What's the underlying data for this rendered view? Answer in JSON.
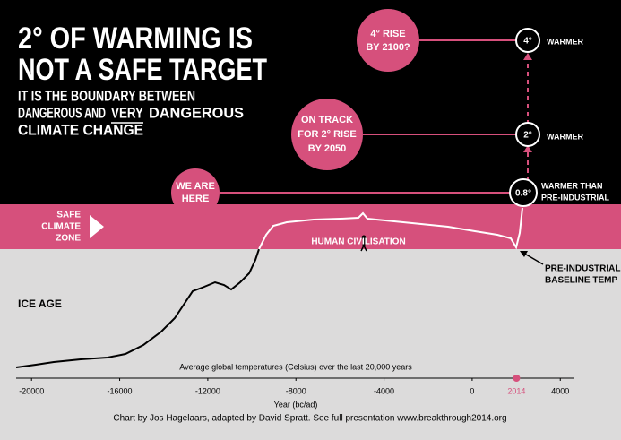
{
  "chart_data": {
    "type": "infographic",
    "title": [
      "2° OF WARMING IS",
      "NOT A SAFE TARGET"
    ],
    "subtitle": [
      "IT IS THE BOUNDARY BETWEEN",
      "DANGEROUS AND",
      "VERY",
      "DANGEROUS",
      "CLIMATE CHANGE"
    ],
    "bubbles": [
      {
        "lines": [
          "4° RISE",
          "BY 2100?"
        ],
        "marker": "4°",
        "label": [
          "WARMER"
        ]
      },
      {
        "lines": [
          "ON TRACK",
          "FOR 2° RISE",
          "BY 2050"
        ],
        "marker": "2°",
        "label": [
          "WARMER"
        ]
      },
      {
        "lines": [
          "WE ARE",
          "HERE"
        ],
        "marker": "0.8°",
        "label": [
          "WARMER THAN",
          "PRE-INDUSTRIAL"
        ]
      }
    ],
    "safe_zone": [
      "SAFE",
      "CLIMATE",
      "ZONE"
    ],
    "annotations": {
      "civilisation": "HUMAN CIVILISATION",
      "baseline": [
        "PRE-INDUSTRIAL",
        "BASELINE TEMP"
      ],
      "ice_age": "ICE AGE"
    },
    "axis_caption": "Average global temperatures (Celsius) over the last 20,000 years",
    "xlabel": "Year (bc/ad)",
    "xlim": [
      -20700,
      4600
    ],
    "xticks": [
      -20000,
      -16000,
      -12000,
      -8000,
      -4000,
      0,
      2014,
      4000
    ],
    "highlight": 2014,
    "highlight_color": "#d6507c",
    "credit": "Chart by Jos Hagelaars, adapted by David Spratt. See full presentation www.breakthrough2014.org"
  }
}
